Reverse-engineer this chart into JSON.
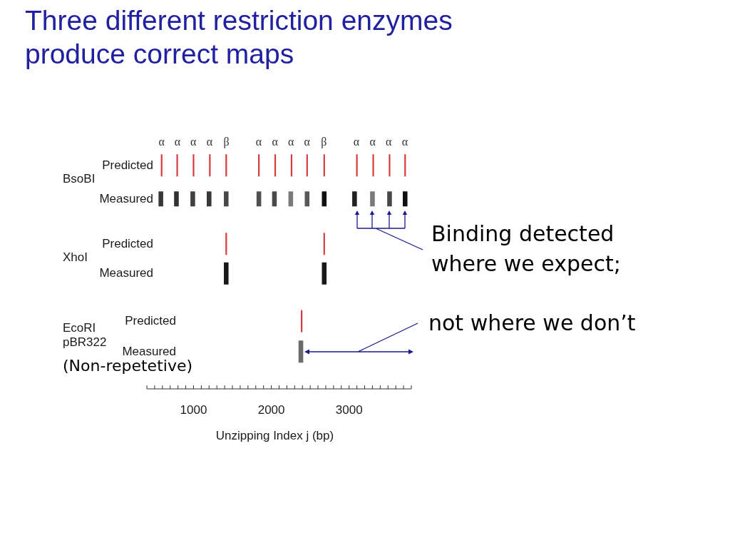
{
  "chart_data": {
    "type": "bar",
    "orientation": "horizontal",
    "title": "Three different restriction enzymes produce correct maps",
    "xlabel": "Unzipping Index j (bp)",
    "categories": [
      "Predicted",
      "Measured",
      "Predicted",
      "Measured",
      "Predicted",
      "Measured"
    ],
    "xlim": [
      400,
      3800
    ],
    "xticks": [
      {
        "value": 400,
        "label": null
      },
      {
        "value": 500,
        "label": null
      },
      {
        "value": 600,
        "label": null
      },
      {
        "value": 700,
        "label": null
      },
      {
        "value": 800,
        "label": null
      },
      {
        "value": 900,
        "label": null
      },
      1000,
      {
        "value": 1100,
        "label": null
      },
      {
        "value": 1200,
        "label": null
      },
      {
        "value": 1300,
        "label": null
      },
      {
        "value": 1400,
        "label": null
      },
      {
        "value": 1500,
        "label": null
      },
      {
        "value": 1600,
        "label": null
      },
      {
        "value": 1700,
        "label": null
      },
      {
        "value": 1800,
        "label": null
      },
      {
        "value": 1900,
        "label": null
      },
      2000,
      {
        "value": 2100,
        "label": null
      },
      {
        "value": 2200,
        "label": null
      },
      {
        "value": 2300,
        "label": null
      },
      {
        "value": 2400,
        "label": null
      },
      {
        "value": 2500,
        "label": null
      },
      {
        "value": 2600,
        "label": null
      },
      {
        "value": 2700,
        "label": null
      },
      {
        "value": 2800,
        "label": null
      },
      {
        "value": 2900,
        "label": null
      },
      3000,
      {
        "value": 3100,
        "label": null
      },
      {
        "value": 3200,
        "label": null
      },
      {
        "value": 3300,
        "label": null
      },
      {
        "value": 3400,
        "label": null
      },
      {
        "value": 3500,
        "label": null
      },
      {
        "value": 3600,
        "label": null
      },
      {
        "value": 3700,
        "label": null
      },
      {
        "value": 3800,
        "label": null
      }
    ],
    "series": [
      {
        "base": [
          580,
          550,
          null,
          null,
          null,
          null
        ],
        "values": [
          20,
          60,
          null,
          null,
          null,
          null
        ],
        "colors": [
          "#d83a3a",
          "#383838",
          null,
          null,
          null,
          null
        ]
      },
      {
        "base": [
          780,
          750,
          null,
          null,
          null,
          null
        ],
        "values": [
          20,
          60,
          null,
          null,
          null,
          null
        ],
        "colors": [
          "#d83a3a",
          "#303030",
          null,
          null,
          null,
          null
        ]
      },
      {
        "base": [
          990,
          960,
          null,
          null,
          null,
          null
        ],
        "values": [
          20,
          60,
          null,
          null,
          null,
          null
        ],
        "colors": [
          "#d83a3a",
          "#404040",
          null,
          null,
          null,
          null
        ]
      },
      {
        "base": [
          1200,
          1170,
          null,
          null,
          null,
          null
        ],
        "values": [
          20,
          60,
          null,
          null,
          null,
          null
        ],
        "colors": [
          "#d83a3a",
          "#383838",
          null,
          null,
          null,
          null
        ]
      },
      {
        "base": [
          1410,
          1390,
          null,
          null,
          null,
          null
        ],
        "values": [
          20,
          60,
          null,
          null,
          null,
          null
        ],
        "colors": [
          "#d83a3a",
          "#484848",
          null,
          null,
          null,
          null
        ]
      },
      {
        "base": [
          1830,
          1810,
          null,
          null,
          null,
          null
        ],
        "values": [
          20,
          60,
          null,
          null,
          null,
          null
        ],
        "colors": [
          "#d83a3a",
          "#505050",
          null,
          null,
          null,
          null
        ]
      },
      {
        "base": [
          2040,
          2010,
          null,
          null,
          null,
          null
        ],
        "values": [
          20,
          60,
          null,
          null,
          null,
          null
        ],
        "colors": [
          "#d83a3a",
          "#4a4a4a",
          null,
          null,
          null,
          null
        ]
      },
      {
        "base": [
          2250,
          2220,
          null,
          null,
          null,
          null
        ],
        "values": [
          20,
          60,
          null,
          null,
          null,
          null
        ],
        "colors": [
          "#d83a3a",
          "#7a7a7a",
          null,
          null,
          null,
          null
        ]
      },
      {
        "base": [
          2450,
          2430,
          null,
          null,
          null,
          null
        ],
        "values": [
          20,
          60,
          null,
          null,
          null,
          null
        ],
        "colors": [
          "#d83a3a",
          "#585858",
          null,
          null,
          null,
          null
        ]
      },
      {
        "base": [
          2670,
          2650,
          null,
          null,
          null,
          null
        ],
        "values": [
          20,
          60,
          null,
          null,
          null,
          null
        ],
        "colors": [
          "#d83a3a",
          "#101010",
          null,
          null,
          null,
          null
        ]
      },
      {
        "base": [
          3090,
          3040,
          null,
          null,
          null,
          null
        ],
        "values": [
          20,
          60,
          null,
          null,
          null,
          null
        ],
        "colors": [
          "#d83a3a",
          "#202020",
          null,
          null,
          null,
          null
        ]
      },
      {
        "base": [
          3300,
          3270,
          null,
          null,
          null,
          null
        ],
        "values": [
          20,
          60,
          null,
          null,
          null,
          null
        ],
        "colors": [
          "#d83a3a",
          "#7a7a7a",
          null,
          null,
          null,
          null
        ]
      },
      {
        "base": [
          3510,
          3490,
          null,
          null,
          null,
          null
        ],
        "values": [
          20,
          60,
          null,
          null,
          null,
          null
        ],
        "colors": [
          "#d83a3a",
          "#484848",
          null,
          null,
          null,
          null
        ]
      },
      {
        "base": [
          3710,
          3690,
          null,
          null,
          null,
          null
        ],
        "values": [
          20,
          60,
          null,
          null,
          null,
          null
        ],
        "colors": [
          "#d83a3a",
          "#101010",
          null,
          null,
          null,
          null
        ]
      },
      {
        "base": [
          null,
          null,
          1410,
          1390,
          null,
          null
        ],
        "values": [
          null,
          null,
          20,
          60,
          null,
          null
        ],
        "colors": [
          null,
          null,
          "#d83a3a",
          "#181818",
          null,
          null
        ]
      },
      {
        "base": [
          null,
          null,
          2670,
          2650,
          null,
          null
        ],
        "values": [
          null,
          null,
          20,
          60,
          null,
          null
        ],
        "colors": [
          null,
          null,
          "#d83a3a",
          "#181818",
          null,
          null
        ]
      },
      {
        "base": [
          null,
          null,
          null,
          null,
          2380,
          2350
        ],
        "values": [
          null,
          null,
          null,
          null,
          20,
          60
        ],
        "colors": [
          null,
          null,
          null,
          null,
          "#d83a3a",
          "#6a6a6a"
        ]
      }
    ],
    "annotations": [
      "α",
      "α",
      "α",
      "α",
      "β",
      "α",
      "α",
      "α",
      "α",
      "β",
      "α",
      "α",
      "α",
      "α",
      "BsoBI",
      "Binding detected where we expect;",
      "XhoI",
      "not where we don’t",
      "EcoRI pBR322",
      "(Non-repetetive)"
    ]
  }
}
